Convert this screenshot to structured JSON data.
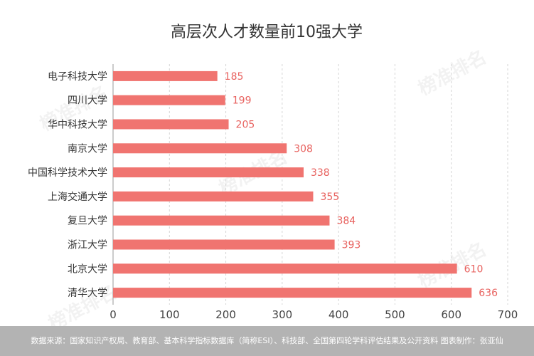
{
  "chart_data": {
    "type": "bar",
    "orientation": "horizontal",
    "title": "高层次人才数量前10强大学",
    "categories": [
      "电子科技大学",
      "四川大学",
      "华中科技大学",
      "南京大学",
      "中国科学技术大学",
      "上海交通大学",
      "复旦大学",
      "浙江大学",
      "北京大学",
      "清华大学"
    ],
    "values": [
      185,
      199,
      205,
      308,
      338,
      355,
      384,
      393,
      610,
      636
    ],
    "xlim": [
      0,
      700
    ],
    "xticks": [
      0,
      100,
      200,
      300,
      400,
      500,
      600,
      700
    ],
    "grid": true,
    "data_labels": true,
    "bar_color": "#f07470",
    "label_color": "#e8625f"
  },
  "watermark": "榜准排名",
  "footer": {
    "source": "数据来源：国家知识产权局、教育部、基本科学指标数据库（简称ESI）、科技部、全国第四轮学科评估结果及公开资料  图表制作：张亚仙"
  }
}
